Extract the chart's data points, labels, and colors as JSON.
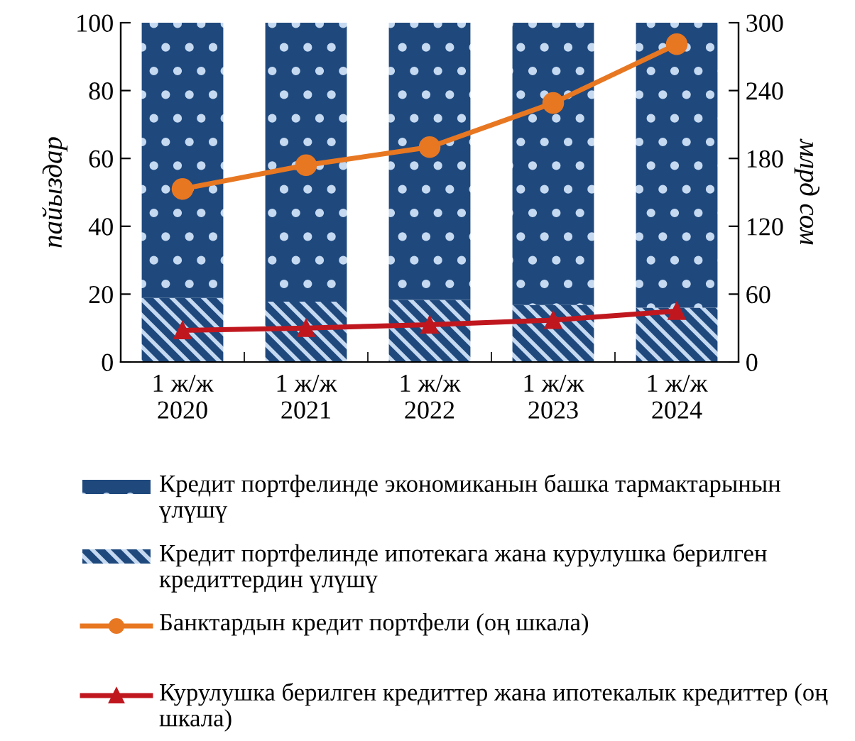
{
  "chart_data": {
    "type": "bar",
    "stacked": true,
    "ylabel": "пайыздар",
    "y2label": "млрд сом",
    "categories": [
      "1 ж/ж\n2020",
      "1 ж/ж\n2021",
      "1 ж/ж\n2022",
      "1 ж/ж\n2023",
      "1 ж/ж\n2024"
    ],
    "ylim": [
      0,
      100
    ],
    "yticks": [
      0,
      20,
      40,
      60,
      80,
      100
    ],
    "y2lim": [
      0,
      300
    ],
    "y2ticks": [
      0,
      60,
      120,
      180,
      240,
      300
    ],
    "grid": false,
    "legend": "bottom",
    "series": [
      {
        "name": "Кредит портфелинде ипотекага жана курулушка берилген кредиттердин үлүшү",
        "color": "#1f497d",
        "values": [
          18.9,
          17.8,
          18.3,
          16.8,
          16.0
        ]
      },
      {
        "name": "Кредит портфелинде экономиканын башка тармактарынын үлүшү",
        "color": "#1f497d",
        "values": [
          81.1,
          82.2,
          81.7,
          83.2,
          84.0
        ]
      },
      {
        "name": "Банктардын кредит портфели (оң шкала)",
        "type": "line",
        "axis": "y2",
        "marker": "circle",
        "color": "#e87722",
        "values": [
          153,
          174,
          190,
          229,
          281
        ]
      },
      {
        "name": "Курулушка берилген кредиттер жана ипотекалык кредиттер (оң шкала)",
        "type": "line",
        "axis": "y2",
        "marker": "triangle",
        "color": "#c0171f",
        "values": [
          28,
          30,
          33,
          37,
          45
        ]
      }
    ]
  }
}
